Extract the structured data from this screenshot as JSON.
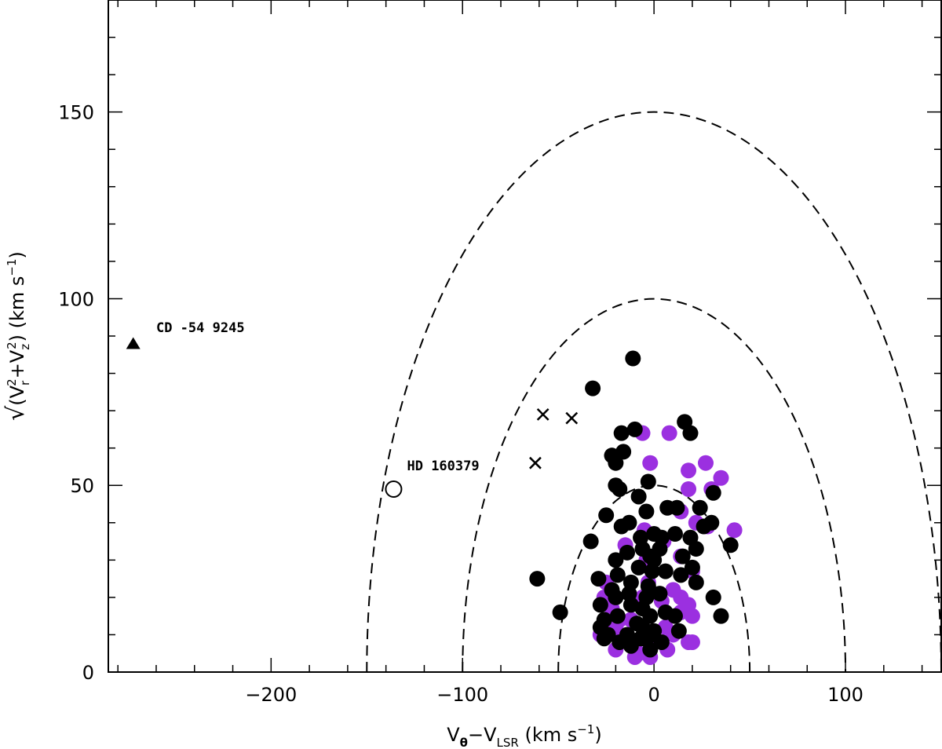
{
  "chart_data": {
    "type": "scatter",
    "title": "",
    "xlabel": "Vθ−VLSR (km s−1)",
    "ylabel": "√(Vr²+Vz²) (km s−1)",
    "xlim": [
      -285,
      150
    ],
    "ylim": [
      0,
      180
    ],
    "x_ticks": [
      -200,
      -100,
      0,
      100
    ],
    "x_tick_labels": [
      "−200",
      "−100",
      "0",
      "100"
    ],
    "y_ticks": [
      0,
      50,
      100,
      150
    ],
    "y_tick_labels": [
      "0",
      "50",
      "100",
      "150"
    ],
    "grid": false,
    "legend": "none",
    "colors": {
      "black": "#000000",
      "purple": "#9b30e0"
    },
    "reference_curves": [
      {
        "type": "dashed-semicircle",
        "radius": 50
      },
      {
        "type": "dashed-semicircle",
        "radius": 100
      },
      {
        "type": "dashed-semicircle",
        "radius": 150
      }
    ],
    "series": [
      {
        "name": "purple filled circles",
        "marker": "filled-circle",
        "color": "#9b30e0",
        "points": [
          [
            -6,
            64
          ],
          [
            -2,
            56
          ],
          [
            8,
            64
          ],
          [
            18,
            54
          ],
          [
            27,
            56
          ],
          [
            35,
            52
          ],
          [
            30,
            49
          ],
          [
            18,
            49
          ],
          [
            14,
            43
          ],
          [
            22,
            40
          ],
          [
            28,
            39
          ],
          [
            42,
            38
          ],
          [
            14,
            31
          ],
          [
            20,
            27
          ],
          [
            -26,
            20
          ],
          [
            -25,
            24
          ],
          [
            -22,
            17
          ],
          [
            -18,
            14
          ],
          [
            -20,
            12
          ],
          [
            -12,
            14
          ],
          [
            -6,
            20
          ],
          [
            -3,
            24
          ],
          [
            4,
            19
          ],
          [
            10,
            22
          ],
          [
            14,
            20
          ],
          [
            18,
            18
          ],
          [
            14,
            16
          ],
          [
            20,
            15
          ],
          [
            6,
            12
          ],
          [
            10,
            10
          ],
          [
            18,
            8
          ],
          [
            20,
            8
          ],
          [
            -20,
            6
          ],
          [
            -8,
            5
          ],
          [
            -20,
            10
          ],
          [
            0,
            8
          ],
          [
            -28,
            10
          ],
          [
            -10,
            4
          ],
          [
            -2,
            4
          ],
          [
            7,
            6
          ],
          [
            -24,
            14
          ],
          [
            -4,
            30
          ],
          [
            5,
            35
          ],
          [
            -15,
            34
          ],
          [
            -5,
            38
          ]
        ]
      },
      {
        "name": "black filled circles",
        "marker": "filled-circle",
        "color": "#000000",
        "points": [
          [
            -11,
            84
          ],
          [
            -32,
            76
          ],
          [
            -10,
            65
          ],
          [
            -17,
            64
          ],
          [
            16,
            67
          ],
          [
            19,
            64
          ],
          [
            -22,
            58
          ],
          [
            -20,
            56
          ],
          [
            -16,
            59
          ],
          [
            -3,
            51
          ],
          [
            -20,
            50
          ],
          [
            -18,
            49
          ],
          [
            31,
            48
          ],
          [
            -8,
            47
          ],
          [
            -25,
            42
          ],
          [
            -13,
            40
          ],
          [
            -4,
            43
          ],
          [
            -17,
            39
          ],
          [
            7,
            44
          ],
          [
            12,
            44
          ],
          [
            24,
            44
          ],
          [
            0,
            37
          ],
          [
            -7,
            36
          ],
          [
            4,
            36
          ],
          [
            11,
            37
          ],
          [
            19,
            36
          ],
          [
            30,
            40
          ],
          [
            26,
            39
          ],
          [
            -33,
            35
          ],
          [
            40,
            34
          ],
          [
            -14,
            32
          ],
          [
            -20,
            30
          ],
          [
            -6,
            33
          ],
          [
            -2,
            31
          ],
          [
            3,
            33
          ],
          [
            15,
            31
          ],
          [
            22,
            33
          ],
          [
            -8,
            28
          ],
          [
            -1,
            27
          ],
          [
            6,
            27
          ],
          [
            14,
            26
          ],
          [
            20,
            28
          ],
          [
            -19,
            26
          ],
          [
            -12,
            24
          ],
          [
            -3,
            23
          ],
          [
            3,
            21
          ],
          [
            22,
            24
          ],
          [
            -61,
            25
          ],
          [
            -29,
            25
          ],
          [
            -20,
            20
          ],
          [
            -12,
            18
          ],
          [
            -6,
            17
          ],
          [
            -2,
            15
          ],
          [
            6,
            16
          ],
          [
            11,
            15
          ],
          [
            -28,
            18
          ],
          [
            -22,
            22
          ],
          [
            -13,
            21
          ],
          [
            -4,
            20
          ],
          [
            -26,
            14
          ],
          [
            -19,
            15
          ],
          [
            -9,
            13
          ],
          [
            0,
            11
          ],
          [
            13,
            11
          ],
          [
            -28,
            12
          ],
          [
            -24,
            10
          ],
          [
            -18,
            8
          ],
          [
            -12,
            7
          ],
          [
            -7,
            9
          ],
          [
            -2,
            6
          ],
          [
            -26,
            9
          ],
          [
            -14,
            10
          ],
          [
            -6,
            12
          ],
          [
            -49,
            16
          ],
          [
            31,
            20
          ],
          [
            35,
            15
          ],
          [
            0,
            30
          ],
          [
            -5,
            9
          ],
          [
            -1,
            10
          ],
          [
            4,
            8
          ]
        ]
      },
      {
        "name": "crosses",
        "marker": "x",
        "color": "#000000",
        "points": [
          [
            -58,
            69
          ],
          [
            -43,
            68
          ],
          [
            -62,
            56
          ]
        ]
      },
      {
        "name": "HD 160379",
        "marker": "open-circle",
        "color": "#000000",
        "points": [
          [
            -136,
            49
          ]
        ]
      },
      {
        "name": "CD -54 9245",
        "marker": "filled-triangle",
        "color": "#000000",
        "points": [
          [
            -272,
            88
          ]
        ]
      }
    ],
    "annotations": [
      {
        "text": "CD -54 9245",
        "x": -260,
        "y": 91
      },
      {
        "text": "HD 160379",
        "x": -129,
        "y": 54
      }
    ]
  }
}
